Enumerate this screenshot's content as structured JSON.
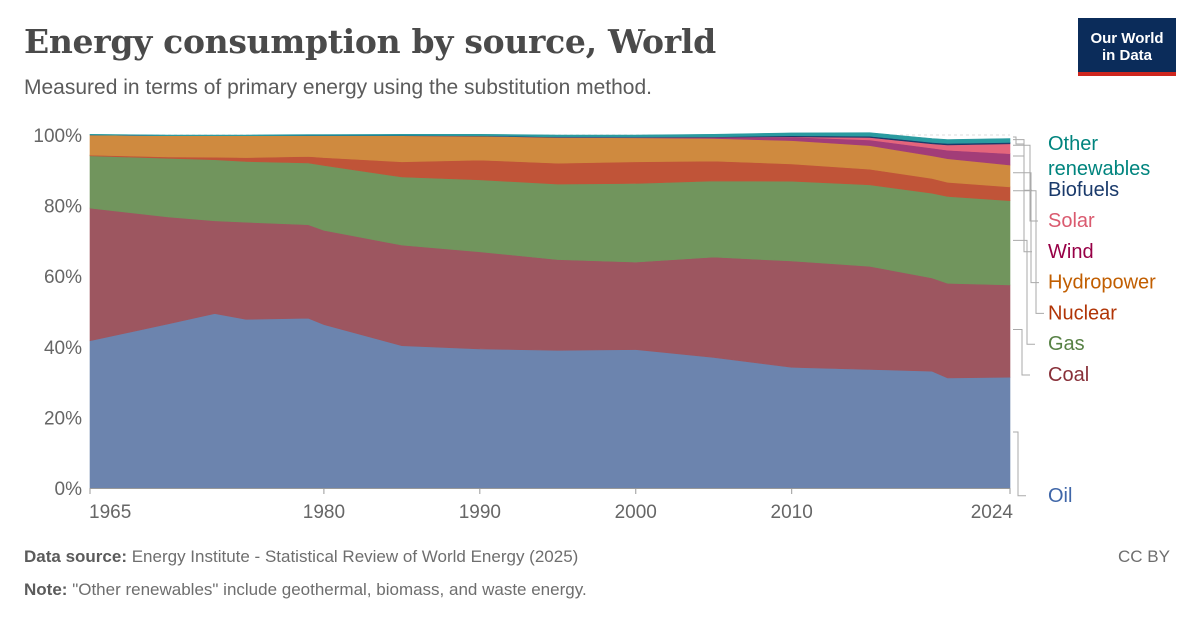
{
  "header": {
    "title": "Energy consumption by source, World",
    "subtitle": "Measured in terms of primary energy using the substitution method.",
    "logo_line1": "Our World",
    "logo_line2": "in Data"
  },
  "footer": {
    "source_label": "Data source:",
    "source_text": "Energy Institute - Statistical Review of World Energy (2025)",
    "note_label": "Note:",
    "note_text": "\"Other renewables\" include geothermal, biomass, and waste energy.",
    "license": "CC BY"
  },
  "chart_data": {
    "type": "area",
    "stacked": true,
    "ylim": [
      0,
      100
    ],
    "yticks": [
      0,
      20,
      40,
      60,
      80,
      100
    ],
    "ytick_labels": [
      "0%",
      "20%",
      "40%",
      "60%",
      "80%",
      "100%"
    ],
    "xlim": [
      1965,
      2024
    ],
    "xticks": [
      1965,
      1980,
      1990,
      2000,
      2010,
      2024
    ],
    "xtick_labels": [
      "1965",
      "1980",
      "1990",
      "2000",
      "2010",
      "2024"
    ],
    "grid": "horizontal",
    "legend": "right",
    "x": [
      1965,
      1970,
      1973,
      1975,
      1979,
      1980,
      1985,
      1990,
      1995,
      2000,
      2005,
      2010,
      2015,
      2019,
      2020,
      2024
    ],
    "series": [
      {
        "name": "Oil",
        "color": "#6c84ae",
        "label_color": "#3f66a8",
        "values": [
          41.7,
          46.5,
          49.4,
          47.8,
          48.1,
          46.3,
          40.3,
          39.4,
          39.0,
          39.2,
          37.0,
          34.2,
          33.6,
          33.1,
          31.2,
          31.4
        ]
      },
      {
        "name": "Coal",
        "color": "#9d5660",
        "label_color": "#883039",
        "values": [
          37.6,
          30.3,
          26.3,
          27.5,
          26.5,
          26.7,
          28.5,
          27.5,
          25.7,
          24.8,
          28.4,
          30.1,
          29.2,
          26.4,
          26.8,
          26.1
        ]
      },
      {
        "name": "Gas",
        "color": "#71955d",
        "label_color": "#578145",
        "values": [
          14.8,
          16.6,
          17.3,
          17.2,
          17.5,
          18.4,
          19.3,
          20.4,
          21.4,
          22.3,
          21.6,
          22.6,
          23.1,
          24.0,
          24.6,
          23.9
        ]
      },
      {
        "name": "Nuclear",
        "color": "#c05438",
        "label_color": "#b13507",
        "values": [
          0.2,
          0.4,
          0.7,
          1.1,
          1.8,
          2.2,
          4.3,
          5.6,
          5.9,
          6.1,
          5.6,
          4.9,
          4.4,
          4.2,
          4.0,
          3.9
        ]
      },
      {
        "name": "Hydropower",
        "color": "#cf8a3f",
        "label_color": "#c15e00",
        "values": [
          5.7,
          6.0,
          6.1,
          6.2,
          5.9,
          6.2,
          7.4,
          6.8,
          7.3,
          6.8,
          6.4,
          6.6,
          6.7,
          6.4,
          6.7,
          6.2
        ]
      },
      {
        "name": "Wind",
        "color": "#a23d78",
        "label_color": "#970046",
        "values": [
          0.0,
          0.0,
          0.0,
          0.0,
          0.0,
          0.0,
          0.0,
          0.0,
          0.05,
          0.1,
          0.3,
          1.0,
          1.6,
          2.2,
          2.4,
          3.2
        ]
      },
      {
        "name": "Solar",
        "color": "#e4657c",
        "label_color": "#da5a6f",
        "values": [
          0.0,
          0.0,
          0.0,
          0.0,
          0.0,
          0.0,
          0.0,
          0.0,
          0.0,
          0.0,
          0.05,
          0.1,
          0.7,
          1.2,
          1.5,
          2.8
        ]
      },
      {
        "name": "Biofuels",
        "color": "#1a3a6b",
        "label_color": "#1a3a6b",
        "values": [
          0.0,
          0.0,
          0.0,
          0.0,
          0.05,
          0.05,
          0.1,
          0.1,
          0.1,
          0.1,
          0.15,
          0.3,
          0.35,
          0.4,
          0.4,
          0.4
        ]
      },
      {
        "name": "Other renewables",
        "color": "#2a9ba0",
        "label_color": "#00847e",
        "label_lines": [
          "Other",
          "renewables"
        ],
        "values": [
          0.2,
          0.2,
          0.2,
          0.2,
          0.25,
          0.25,
          0.3,
          0.4,
          0.55,
          0.6,
          0.7,
          0.8,
          1.0,
          1.1,
          1.1,
          1.1
        ]
      }
    ]
  }
}
